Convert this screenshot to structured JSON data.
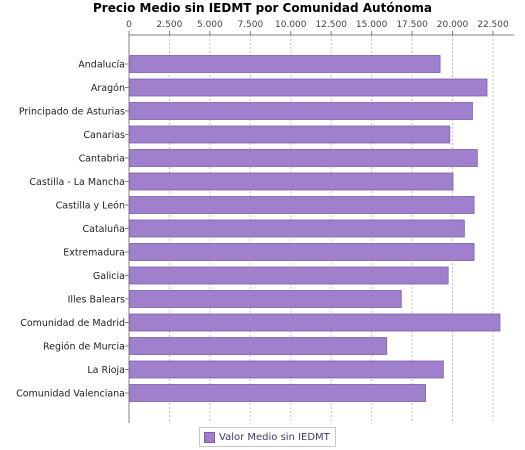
{
  "chart_data": {
    "type": "bar",
    "orientation": "horizontal",
    "title": "Precio Medio sin IEDMT por Comunidad Autónoma",
    "categories": [
      "Andalucía",
      "Aragón",
      "Principado de Asturias",
      "Canarias",
      "Cantabria",
      "Castilla - La Mancha",
      "Castilla y León",
      "Cataluña",
      "Extremadura",
      "Galicia",
      "Illes Balears",
      "Comunidad de Madrid",
      "Región de Murcia",
      "La Rioja",
      "Comunidad Valenciana"
    ],
    "series": [
      {
        "name": "Valor Medio sin IEDMT",
        "color": "#a07fcc",
        "values": [
          19200,
          22100,
          21200,
          19800,
          21500,
          20000,
          21300,
          20700,
          21300,
          19700,
          16800,
          22900,
          15900,
          19400,
          18300
        ]
      }
    ],
    "xticks": [
      "0",
      "2.500",
      "5.000",
      "7.500",
      "10.000",
      "12.500",
      "15.000",
      "17.500",
      "20.000",
      "22.500"
    ],
    "xlim": [
      0,
      23800
    ],
    "grid": true,
    "axis_position": "top",
    "legend_position": "bottom"
  }
}
